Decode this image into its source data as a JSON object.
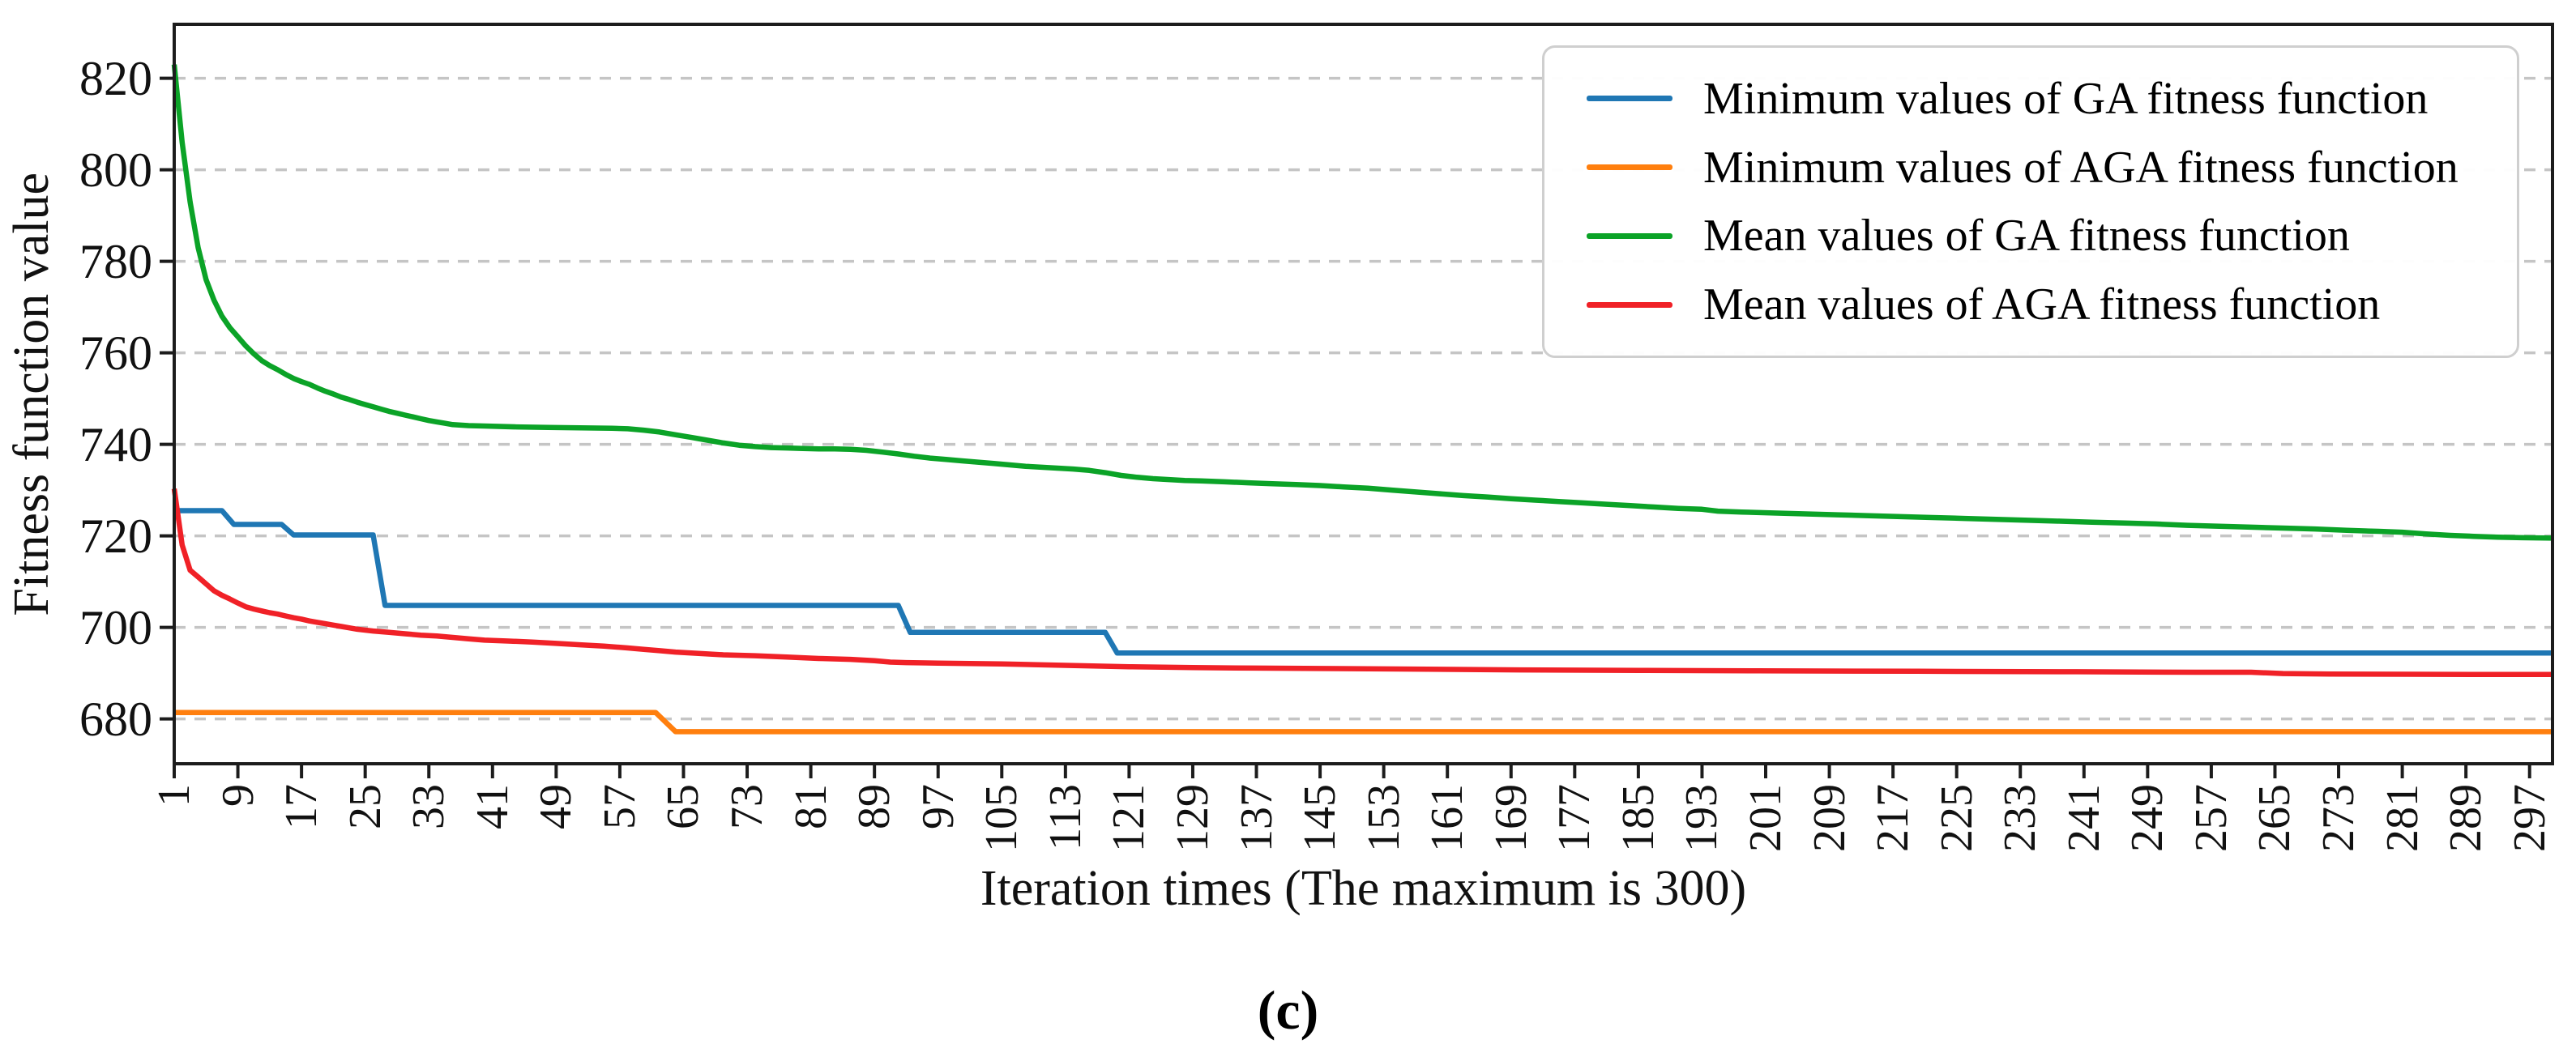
{
  "figure": {
    "caption": "(c)",
    "background": "#ffffff"
  },
  "chart_data": {
    "type": "line",
    "title": "",
    "xlabel": "Iteration times (The maximum is 300)",
    "ylabel": "Fitness function value",
    "xlim": [
      1,
      300
    ],
    "ylim": [
      670,
      832
    ],
    "x_ticks": [
      1,
      9,
      17,
      25,
      33,
      41,
      49,
      57,
      65,
      73,
      81,
      89,
      97,
      105,
      113,
      121,
      129,
      137,
      145,
      153,
      161,
      169,
      177,
      185,
      193,
      201,
      209,
      217,
      225,
      233,
      241,
      249,
      257,
      265,
      273,
      281,
      289,
      297
    ],
    "y_ticks": [
      680,
      700,
      720,
      740,
      760,
      780,
      800,
      820
    ],
    "grid": "horizontal dashed",
    "grid_color": "#c5c5c5",
    "axis_color": "#1c1c1c",
    "legend_position": "upper right",
    "series": [
      {
        "name": "Minimum values of GA fitness function",
        "color": "#1f77b4",
        "points": [
          [
            1,
            725.5
          ],
          [
            7,
            725.5
          ],
          [
            8.5,
            722.5
          ],
          [
            14.5,
            722.5
          ],
          [
            16,
            720.2
          ],
          [
            26,
            720.2
          ],
          [
            27.5,
            704.8
          ],
          [
            92,
            704.8
          ],
          [
            93.5,
            698.9
          ],
          [
            118,
            698.9
          ],
          [
            119.5,
            694.4
          ],
          [
            300,
            694.4
          ]
        ]
      },
      {
        "name": "Minimum values of AGA fitness function",
        "color": "#ff7f0e",
        "points": [
          [
            1,
            681.4
          ],
          [
            61.5,
            681.4
          ],
          [
            64,
            677.2
          ],
          [
            300,
            677.2
          ]
        ]
      },
      {
        "name": "Mean values of GA fitness function",
        "color": "#0ba327",
        "points": [
          [
            1,
            823
          ],
          [
            2,
            806
          ],
          [
            3,
            793
          ],
          [
            4,
            783
          ],
          [
            5,
            776
          ],
          [
            6,
            771.5
          ],
          [
            7,
            768
          ],
          [
            8,
            765.5
          ],
          [
            9,
            763.5
          ],
          [
            10,
            761.5
          ],
          [
            11,
            759.8
          ],
          [
            12,
            758.3
          ],
          [
            13,
            757.2
          ],
          [
            14,
            756.3
          ],
          [
            15,
            755.3
          ],
          [
            16,
            754.4
          ],
          [
            17,
            753.7
          ],
          [
            18,
            753.1
          ],
          [
            19,
            752.3
          ],
          [
            20,
            751.6
          ],
          [
            21,
            751
          ],
          [
            22,
            750.3
          ],
          [
            23,
            749.8
          ],
          [
            24,
            749.2
          ],
          [
            25,
            748.7
          ],
          [
            26,
            748.2
          ],
          [
            27,
            747.7
          ],
          [
            28,
            747.2
          ],
          [
            29,
            746.8
          ],
          [
            30,
            746.4
          ],
          [
            31,
            746
          ],
          [
            32,
            745.6
          ],
          [
            33,
            745.2
          ],
          [
            34,
            744.9
          ],
          [
            35,
            744.6
          ],
          [
            36,
            744.3
          ],
          [
            38,
            744.1
          ],
          [
            40,
            744
          ],
          [
            44,
            743.8
          ],
          [
            48,
            743.7
          ],
          [
            52,
            743.6
          ],
          [
            56,
            743.5
          ],
          [
            58,
            743.4
          ],
          [
            60,
            743.1
          ],
          [
            62,
            742.7
          ],
          [
            64,
            742.1
          ],
          [
            66,
            741.5
          ],
          [
            68,
            740.9
          ],
          [
            70,
            740.3
          ],
          [
            72,
            739.8
          ],
          [
            74,
            739.5
          ],
          [
            76,
            739.3
          ],
          [
            78,
            739.2
          ],
          [
            80,
            739.1
          ],
          [
            82,
            739
          ],
          [
            84,
            739
          ],
          [
            86,
            738.9
          ],
          [
            88,
            738.7
          ],
          [
            90,
            738.3
          ],
          [
            92,
            737.9
          ],
          [
            94,
            737.4
          ],
          [
            96,
            737
          ],
          [
            98,
            736.7
          ],
          [
            100,
            736.4
          ],
          [
            102,
            736.1
          ],
          [
            104,
            735.8
          ],
          [
            106,
            735.5
          ],
          [
            108,
            735.2
          ],
          [
            110,
            735
          ],
          [
            112,
            734.8
          ],
          [
            114,
            734.6
          ],
          [
            116,
            734.3
          ],
          [
            118,
            733.8
          ],
          [
            120,
            733.2
          ],
          [
            122,
            732.8
          ],
          [
            124,
            732.5
          ],
          [
            126,
            732.3
          ],
          [
            128,
            732.1
          ],
          [
            130,
            732
          ],
          [
            133,
            731.8
          ],
          [
            136,
            731.6
          ],
          [
            139,
            731.4
          ],
          [
            142,
            731.2
          ],
          [
            145,
            731
          ],
          [
            148,
            730.7
          ],
          [
            151,
            730.4
          ],
          [
            154,
            730
          ],
          [
            157,
            729.6
          ],
          [
            160,
            729.2
          ],
          [
            163,
            728.8
          ],
          [
            166,
            728.5
          ],
          [
            169,
            728.1
          ],
          [
            172,
            727.8
          ],
          [
            175,
            727.5
          ],
          [
            178,
            727.2
          ],
          [
            181,
            726.9
          ],
          [
            184,
            726.6
          ],
          [
            187,
            726.3
          ],
          [
            190,
            726
          ],
          [
            193,
            725.8
          ],
          [
            195,
            725.4
          ],
          [
            198,
            725.2
          ],
          [
            202,
            725
          ],
          [
            206,
            724.8
          ],
          [
            210,
            724.6
          ],
          [
            214,
            724.4
          ],
          [
            218,
            724.2
          ],
          [
            222,
            724
          ],
          [
            226,
            723.8
          ],
          [
            230,
            723.6
          ],
          [
            234,
            723.4
          ],
          [
            238,
            723.2
          ],
          [
            242,
            723
          ],
          [
            246,
            722.8
          ],
          [
            250,
            722.6
          ],
          [
            254,
            722.3
          ],
          [
            258,
            722.1
          ],
          [
            262,
            721.9
          ],
          [
            266,
            721.7
          ],
          [
            270,
            721.5
          ],
          [
            274,
            721.2
          ],
          [
            278,
            721
          ],
          [
            281,
            720.8
          ],
          [
            284,
            720.4
          ],
          [
            287,
            720.1
          ],
          [
            290,
            719.9
          ],
          [
            293,
            719.7
          ],
          [
            296,
            719.6
          ],
          [
            300,
            719.5
          ]
        ]
      },
      {
        "name": "Mean values of AGA fitness function",
        "color": "#f02127",
        "points": [
          [
            1,
            730.3
          ],
          [
            2,
            718
          ],
          [
            3,
            712.5
          ],
          [
            4,
            711
          ],
          [
            5,
            709.5
          ],
          [
            6,
            708
          ],
          [
            7,
            707
          ],
          [
            8,
            706.2
          ],
          [
            9,
            705.3
          ],
          [
            10,
            704.5
          ],
          [
            11,
            704
          ],
          [
            12,
            703.6
          ],
          [
            13,
            703.2
          ],
          [
            14,
            702.9
          ],
          [
            15,
            702.5
          ],
          [
            16,
            702.1
          ],
          [
            17,
            701.8
          ],
          [
            18,
            701.4
          ],
          [
            19,
            701.1
          ],
          [
            20,
            700.8
          ],
          [
            21,
            700.5
          ],
          [
            22,
            700.2
          ],
          [
            23,
            699.9
          ],
          [
            24,
            699.6
          ],
          [
            25,
            699.4
          ],
          [
            26,
            699.2
          ],
          [
            28,
            698.9
          ],
          [
            30,
            698.6
          ],
          [
            32,
            698.3
          ],
          [
            34,
            698.1
          ],
          [
            36,
            697.8
          ],
          [
            38,
            697.5
          ],
          [
            40,
            697.2
          ],
          [
            43,
            697
          ],
          [
            46,
            696.8
          ],
          [
            49,
            696.5
          ],
          [
            52,
            696.2
          ],
          [
            55,
            695.9
          ],
          [
            58,
            695.5
          ],
          [
            60,
            695.2
          ],
          [
            62,
            694.9
          ],
          [
            64,
            694.6
          ],
          [
            66,
            694.4
          ],
          [
            68,
            694.2
          ],
          [
            70,
            694
          ],
          [
            74,
            693.8
          ],
          [
            78,
            693.5
          ],
          [
            82,
            693.2
          ],
          [
            86,
            693
          ],
          [
            89,
            692.7
          ],
          [
            91,
            692.4
          ],
          [
            93,
            692.3
          ],
          [
            97,
            692.2
          ],
          [
            105,
            692
          ],
          [
            113,
            691.7
          ],
          [
            121,
            691.4
          ],
          [
            129,
            691.2
          ],
          [
            137,
            691.1
          ],
          [
            145,
            691
          ],
          [
            155,
            690.9
          ],
          [
            170,
            690.7
          ],
          [
            185,
            690.6
          ],
          [
            200,
            690.5
          ],
          [
            220,
            690.4
          ],
          [
            240,
            690.3
          ],
          [
            255,
            690.2
          ],
          [
            262,
            690.2
          ],
          [
            266,
            689.9
          ],
          [
            272,
            689.8
          ],
          [
            282,
            689.75
          ],
          [
            292,
            689.7
          ],
          [
            300,
            689.7
          ]
        ]
      }
    ]
  }
}
